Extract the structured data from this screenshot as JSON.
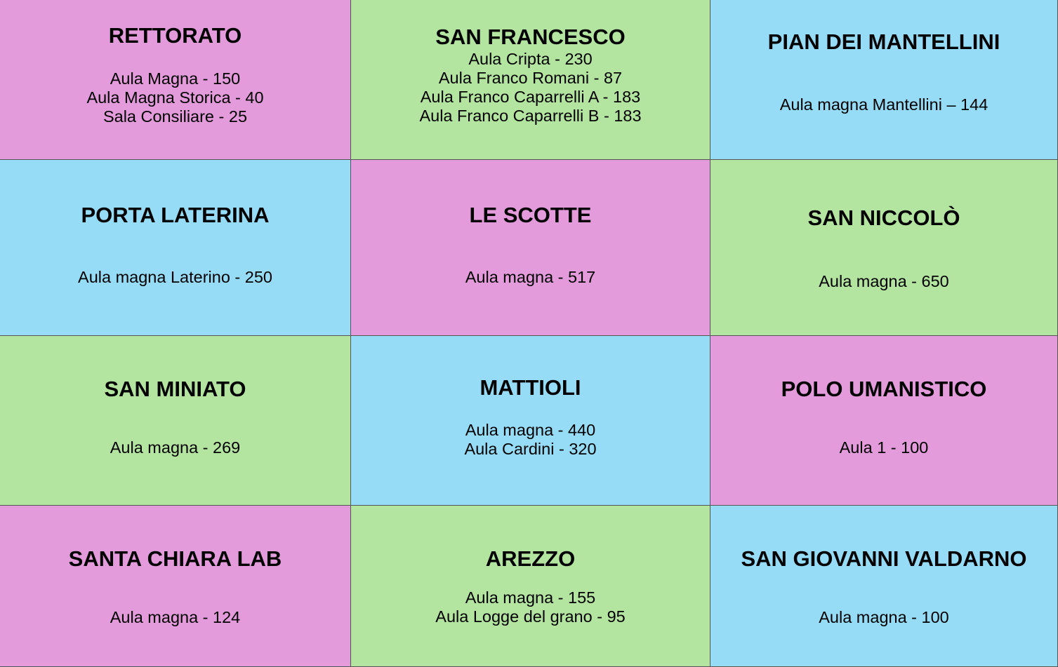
{
  "cells": [
    {
      "title": "RETTORATO",
      "lines": [
        "Aula Magna - 150",
        "Aula Magna Storica - 40",
        "Sala Consiliare - 25"
      ]
    },
    {
      "title": "SAN FRANCESCO",
      "lines": [
        "Aula Cripta - 230",
        "Aula Franco Romani - 87",
        "Aula Franco Caparrelli A - 183",
        "Aula Franco Caparrelli B - 183"
      ]
    },
    {
      "title": "PIAN DEI MANTELLINI",
      "lines": [
        "Aula magna Mantellini – 144"
      ]
    },
    {
      "title": "PORTA LATERINA",
      "lines": [
        "Aula magna Laterino - 250"
      ]
    },
    {
      "title": "LE SCOTTE",
      "lines": [
        "Aula magna - 517"
      ]
    },
    {
      "title": "SAN NICCOLÒ",
      "lines": [
        "Aula magna - 650"
      ]
    },
    {
      "title": "SAN MINIATO",
      "lines": [
        "Aula magna - 269"
      ]
    },
    {
      "title": "MATTIOLI",
      "lines": [
        "Aula magna - 440",
        "Aula Cardini - 320"
      ]
    },
    {
      "title": "POLO UMANISTICO",
      "lines": [
        "Aula 1 - 100"
      ]
    },
    {
      "title": "SANTA CHIARA LAB",
      "lines": [
        "Aula magna - 124"
      ]
    },
    {
      "title": "AREZZO",
      "lines": [
        "Aula magna - 155",
        "Aula Logge del grano - 95"
      ]
    },
    {
      "title": "SAN GIOVANNI VALDARNO",
      "lines": [
        "Aula magna - 100"
      ]
    }
  ]
}
